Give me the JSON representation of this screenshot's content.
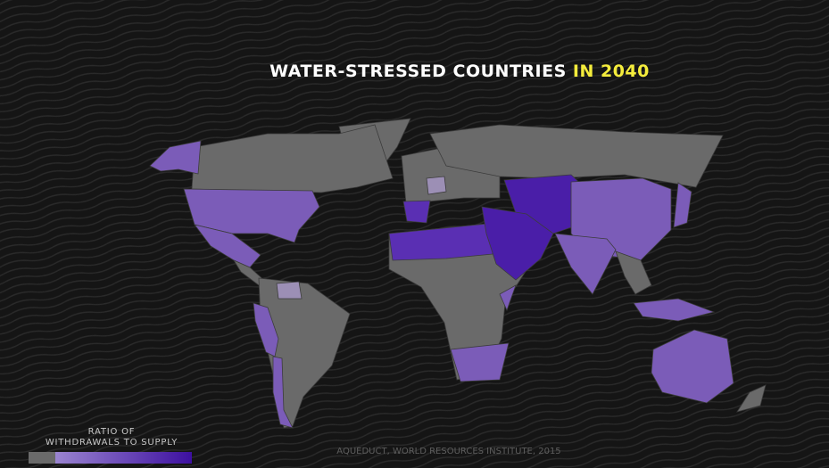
{
  "title": {
    "main": "WATER-STRESSED COUNTRIES",
    "highlight": "IN 2040"
  },
  "legend": {
    "title_lines": [
      "RATIO OF",
      "WITHDRAWALS TO SUPPLY"
    ]
  },
  "source": "AQUEDUCT, WORLD RESOURCES INSTITUTE, 2015"
}
